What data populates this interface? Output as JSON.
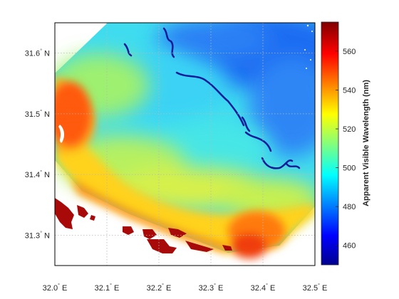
{
  "chart_data": {
    "type": "heatmap",
    "title": "",
    "x_ticks": [
      {
        "value": 32.0,
        "label": "32.0",
        "suffix": "E"
      },
      {
        "value": 32.1,
        "label": "32.1",
        "suffix": "E"
      },
      {
        "value": 32.2,
        "label": "32.2",
        "suffix": "E"
      },
      {
        "value": 32.3,
        "label": "32.3",
        "suffix": "E"
      },
      {
        "value": 32.4,
        "label": "32.4",
        "suffix": "E"
      },
      {
        "value": 32.5,
        "label": "32.5",
        "suffix": "E"
      }
    ],
    "y_ticks": [
      {
        "value": 31.3,
        "label": "31.3",
        "suffix": "N"
      },
      {
        "value": 31.4,
        "label": "31.4",
        "suffix": "N"
      },
      {
        "value": 31.5,
        "label": "31.5",
        "suffix": "N"
      },
      {
        "value": 31.6,
        "label": "31.6",
        "suffix": "N"
      }
    ],
    "xlim": [
      32.0,
      32.5
    ],
    "ylim": [
      31.25,
      31.65
    ],
    "grid": true,
    "colorbar": {
      "label": "Apparent Visible Wavelength (nm)",
      "range": [
        450,
        575
      ],
      "ticks": [
        460,
        480,
        500,
        520,
        540,
        560
      ],
      "colormap": "jet",
      "placement": "right"
    },
    "field": {
      "low_value_region": "north-east (offshore, ~470-490 nm)",
      "high_value_region": "south-west coast (~550-570 nm)"
    }
  }
}
